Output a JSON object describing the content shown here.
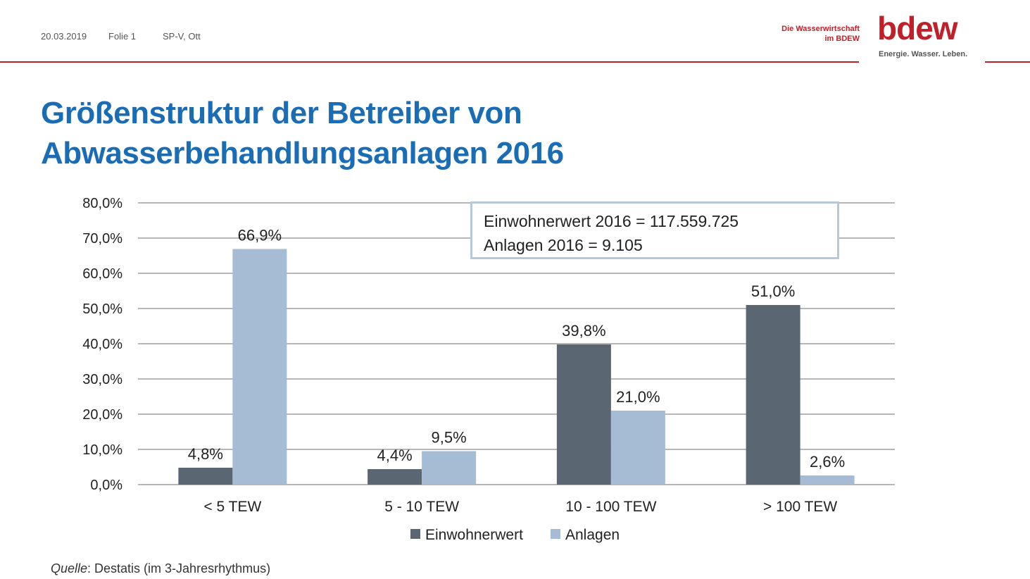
{
  "header": {
    "date": "20.03.2019",
    "slide": "Folie 1",
    "author": "SP-V, Ott",
    "org_line1": "Die Wasserwirtschaft",
    "org_line2": "im BDEW",
    "logo_text": "bdew",
    "tagline": "Energie. Wasser. Leben."
  },
  "title_line1": "Größenstruktur der Betreiber von",
  "title_line2": "Abwasserbehandlungsanlagen 2016",
  "info_box": {
    "line1": "Einwohnerwert 2016 = 117.559.725",
    "line2": "Anlagen 2016 = 9.105"
  },
  "source": {
    "label": "Quelle",
    "text": ": Destatis (im 3-Jahresrhythmus)"
  },
  "colors": {
    "einwohnerwert": "#5a6672",
    "anlagen": "#a5bcd4",
    "title": "#1a6db5",
    "brand_red": "#c0202a"
  },
  "chart_data": {
    "type": "bar",
    "categories": [
      "< 5 TEW",
      "5 - 10 TEW",
      "10 - 100 TEW",
      "> 100 TEW"
    ],
    "series": [
      {
        "name": "Einwohnerwert",
        "values": [
          4.8,
          4.4,
          39.8,
          51.0
        ],
        "labels": [
          "4,8%",
          "4,4%",
          "39,8%",
          "51,0%"
        ],
        "color": "#5a6672"
      },
      {
        "name": "Anlagen",
        "values": [
          66.9,
          9.5,
          21.0,
          2.6
        ],
        "labels": [
          "66,9%",
          "9,5%",
          "21,0%",
          "2,6%"
        ],
        "color": "#a5bcd4"
      }
    ],
    "ylim": [
      0,
      80
    ],
    "yticks": [
      0,
      10,
      20,
      30,
      40,
      50,
      60,
      70,
      80
    ],
    "ytick_labels": [
      "0,0%",
      "10,0%",
      "20,0%",
      "30,0%",
      "40,0%",
      "50,0%",
      "60,0%",
      "70,0%",
      "80,0%"
    ],
    "grid": true,
    "legend": "bottom"
  }
}
